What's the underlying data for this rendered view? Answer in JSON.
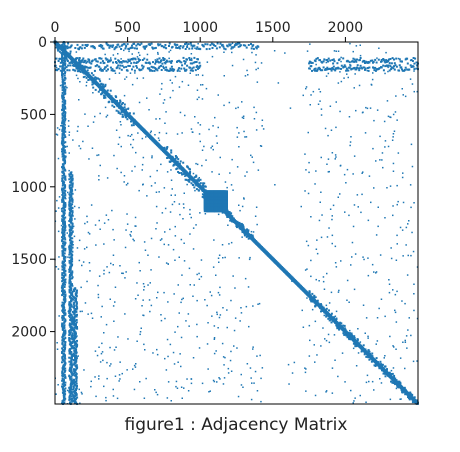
{
  "chart_data": {
    "type": "heatmap",
    "title": "",
    "caption": "figure1 : Adjacency Matrix",
    "xlabel": "",
    "ylabel": "",
    "x_ticks": [
      0,
      500,
      1000,
      1500,
      2000
    ],
    "y_ticks": [
      0,
      500,
      1000,
      1500,
      2000
    ],
    "xlim": [
      0,
      2500
    ],
    "ylim": [
      2500,
      0
    ],
    "x_axis_position": "top",
    "grid": false,
    "marker_color": "#1f77b4",
    "diagonal_blocks": [
      {
        "start": 0,
        "end": 250
      },
      {
        "start": 250,
        "end": 550
      },
      {
        "start": 750,
        "end": 1050
      },
      {
        "start": 1050,
        "end": 1200
      },
      {
        "start": 1200,
        "end": 1380
      },
      {
        "start": 1750,
        "end": 1950
      },
      {
        "start": 1950,
        "end": 2150
      },
      {
        "start": 2150,
        "end": 2350
      },
      {
        "start": 2350,
        "end": 2500
      }
    ],
    "dense_row_bands": [
      {
        "row": 30,
        "from": 0,
        "to": 1400
      },
      {
        "row": 130,
        "from": 0,
        "to": 1000
      },
      {
        "row": 180,
        "from": 0,
        "to": 1000
      },
      {
        "row": 130,
        "from": 1750,
        "to": 2500
      },
      {
        "row": 180,
        "from": 1750,
        "to": 2500
      }
    ],
    "dense_column_bands": [
      {
        "col": 60,
        "from": 0,
        "to": 2500
      },
      {
        "col": 110,
        "from": 900,
        "to": 2500
      },
      {
        "col": 140,
        "from": 1700,
        "to": 2500
      }
    ],
    "dense_blocks": [
      {
        "r0": 1040,
        "r1": 1160,
        "c0": 1040,
        "c1": 1180
      }
    ]
  }
}
